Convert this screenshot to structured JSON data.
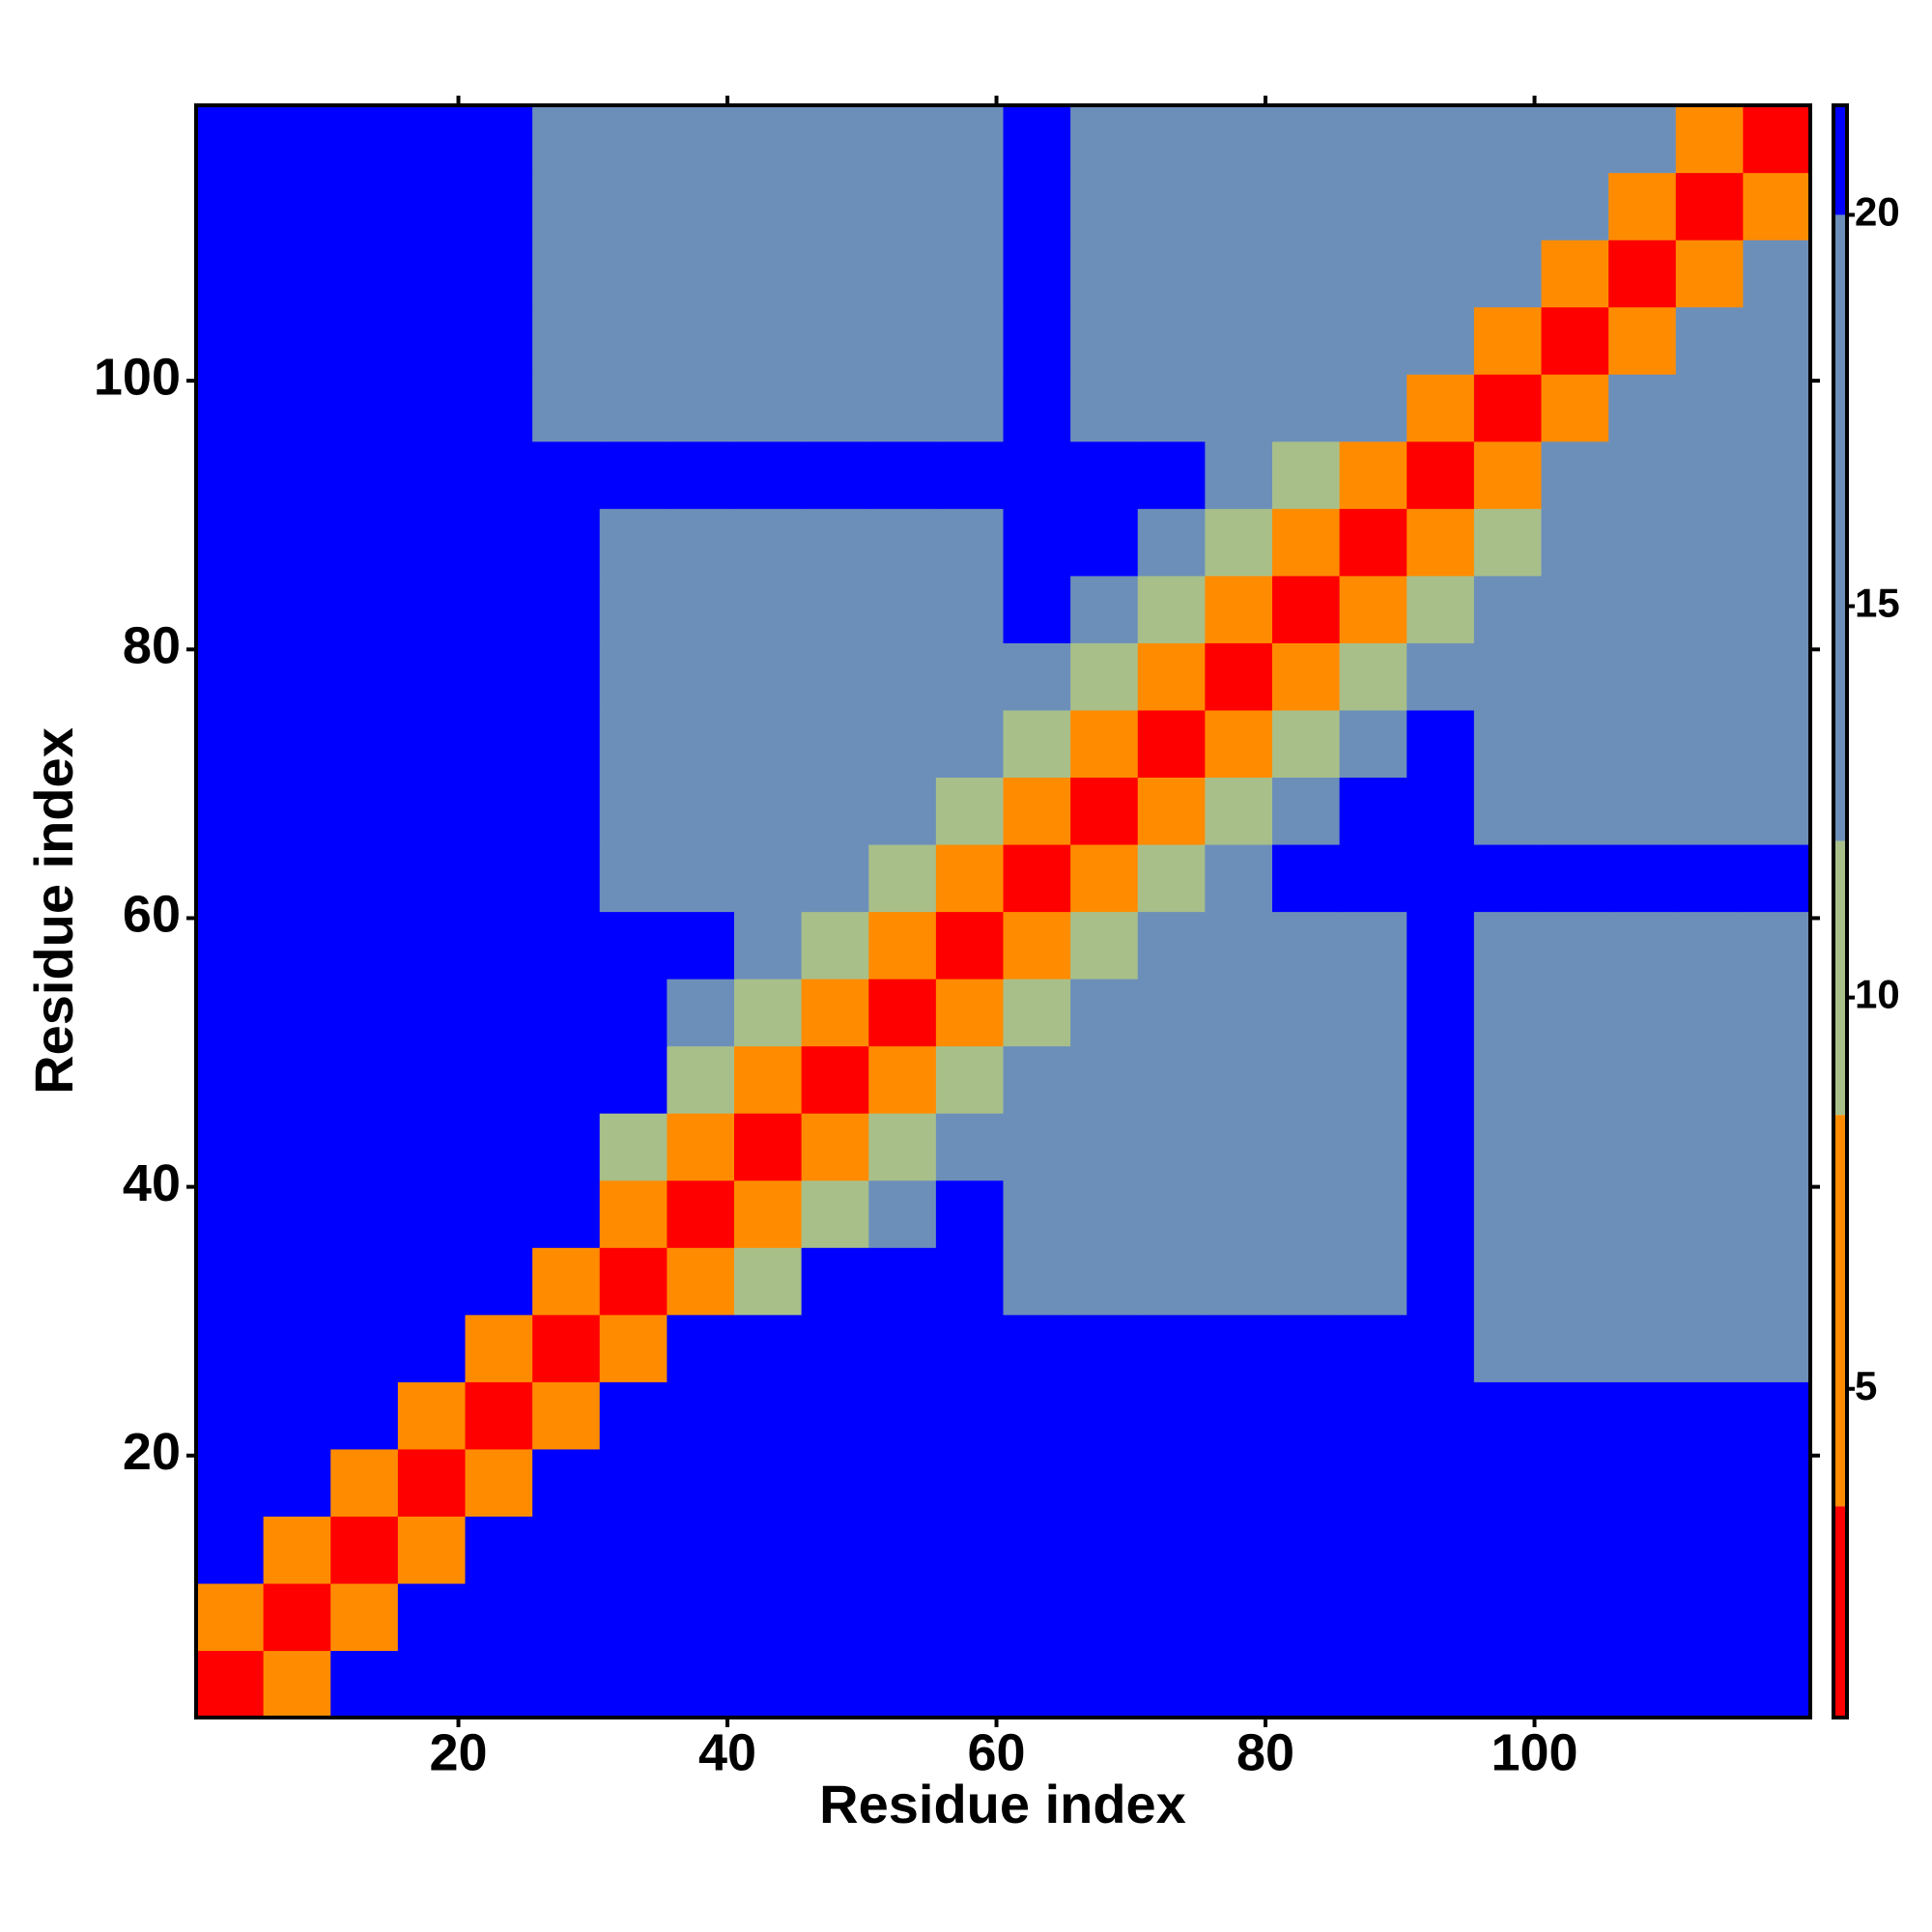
{
  "chart_data": {
    "type": "heatmap",
    "x_label": "Residue index",
    "y_label": "Residue index",
    "xbins": [
      0.5,
      5.5,
      10.5,
      15.5,
      20.5,
      25.5,
      30.5,
      35.5,
      40.5,
      45.5,
      50.5,
      55.5,
      60.5,
      65.5,
      70.5,
      75.5,
      80.5,
      85.5,
      90.5,
      95.5,
      100.5,
      105.5,
      110.5,
      115.5,
      120.5
    ],
    "ybins": [
      0.5,
      5.5,
      10.5,
      15.5,
      20.5,
      25.5,
      30.5,
      35.5,
      40.5,
      45.5,
      50.5,
      55.5,
      60.5,
      65.5,
      70.5,
      75.5,
      80.5,
      85.5,
      90.5,
      95.5,
      100.5,
      105.5,
      110.5,
      115.5,
      120.5
    ],
    "xlim": [
      0.5,
      120.5
    ],
    "ylim": [
      0.5,
      120.5
    ],
    "xticks": [
      20,
      40,
      60,
      80,
      100
    ],
    "yticks": [
      20,
      40,
      60,
      80,
      100
    ],
    "z": [
      [
        2,
        7,
        21,
        21,
        21,
        21,
        21,
        21,
        21,
        21,
        21,
        21,
        21,
        21,
        21,
        21,
        21,
        21,
        21,
        21,
        21,
        21,
        21,
        21
      ],
      [
        7,
        2,
        7,
        21,
        21,
        21,
        21,
        21,
        21,
        21,
        21,
        21,
        21,
        21,
        21,
        21,
        21,
        21,
        21,
        21,
        21,
        21,
        21,
        21
      ],
      [
        21,
        7,
        2,
        7,
        21,
        21,
        21,
        21,
        21,
        21,
        21,
        21,
        21,
        21,
        21,
        21,
        21,
        21,
        21,
        21,
        21,
        21,
        21,
        21
      ],
      [
        21,
        21,
        7,
        2,
        7,
        21,
        21,
        21,
        21,
        21,
        21,
        21,
        21,
        21,
        21,
        21,
        21,
        21,
        21,
        21,
        21,
        21,
        21,
        21
      ],
      [
        21,
        21,
        21,
        7,
        2,
        7,
        21,
        21,
        21,
        21,
        21,
        21,
        21,
        21,
        21,
        21,
        21,
        21,
        21,
        21,
        21,
        21,
        21,
        21
      ],
      [
        21,
        21,
        21,
        21,
        7,
        2,
        7,
        21,
        21,
        21,
        21,
        21,
        21,
        21,
        21,
        21,
        21,
        21,
        21,
        17,
        17,
        17,
        17,
        17
      ],
      [
        21,
        21,
        21,
        21,
        21,
        7,
        2,
        7,
        11,
        21,
        21,
        21,
        17,
        17,
        17,
        17,
        17,
        17,
        21,
        16,
        16,
        16,
        16,
        16
      ],
      [
        21,
        21,
        21,
        21,
        21,
        21,
        7,
        2,
        7,
        11,
        16,
        21,
        13,
        13,
        13,
        13,
        13,
        17,
        21,
        13,
        13,
        13,
        13,
        13
      ],
      [
        21,
        21,
        21,
        21,
        21,
        21,
        11,
        7,
        2,
        7,
        11,
        16,
        13,
        13,
        13,
        13,
        13,
        17,
        21,
        13,
        13,
        13,
        13,
        13
      ],
      [
        21,
        21,
        21,
        21,
        21,
        21,
        21,
        11,
        7,
        2,
        7,
        11,
        13,
        13,
        13,
        13,
        13,
        17,
        21,
        13,
        13,
        13,
        13,
        13
      ],
      [
        21,
        21,
        21,
        21,
        21,
        21,
        21,
        16,
        11,
        7,
        2,
        7,
        11,
        13,
        13,
        13,
        13,
        17,
        21,
        13,
        13,
        13,
        13,
        13
      ],
      [
        21,
        21,
        21,
        21,
        21,
        21,
        21,
        21,
        16,
        11,
        7,
        2,
        7,
        11,
        13,
        13,
        13,
        17,
        21,
        16,
        16,
        16,
        16,
        16
      ],
      [
        21,
        21,
        21,
        21,
        21,
        21,
        17,
        13,
        13,
        13,
        11,
        7,
        2,
        7,
        11,
        16,
        21,
        21,
        21,
        21,
        21,
        21,
        21,
        21
      ],
      [
        21,
        21,
        21,
        21,
        21,
        21,
        17,
        13,
        13,
        13,
        13,
        11,
        7,
        2,
        7,
        11,
        16,
        21,
        21,
        17,
        17,
        17,
        17,
        17
      ],
      [
        21,
        21,
        21,
        21,
        21,
        21,
        17,
        13,
        13,
        13,
        13,
        13,
        11,
        7,
        2,
        7,
        11,
        16,
        21,
        13,
        13,
        13,
        13,
        13
      ],
      [
        21,
        21,
        21,
        21,
        21,
        21,
        17,
        13,
        13,
        13,
        13,
        13,
        16,
        11,
        7,
        2,
        7,
        11,
        16,
        13,
        13,
        13,
        13,
        13
      ],
      [
        21,
        21,
        21,
        21,
        21,
        21,
        17,
        13,
        13,
        13,
        13,
        13,
        21,
        16,
        11,
        7,
        2,
        7,
        11,
        13,
        13,
        13,
        13,
        13
      ],
      [
        21,
        21,
        21,
        21,
        21,
        21,
        17,
        17,
        17,
        17,
        17,
        17,
        21,
        21,
        16,
        11,
        7,
        2,
        7,
        11,
        13,
        13,
        13,
        13
      ],
      [
        21,
        21,
        21,
        21,
        21,
        21,
        21,
        21,
        21,
        21,
        21,
        21,
        21,
        21,
        21,
        16,
        11,
        7,
        2,
        7,
        13,
        13,
        13,
        13
      ],
      [
        21,
        21,
        21,
        21,
        21,
        17,
        16,
        13,
        13,
        13,
        13,
        16,
        21,
        17,
        13,
        13,
        13,
        13,
        7,
        2,
        7,
        13,
        13,
        13
      ],
      [
        21,
        21,
        21,
        21,
        21,
        17,
        16,
        13,
        13,
        13,
        13,
        16,
        21,
        17,
        13,
        13,
        13,
        13,
        13,
        7,
        2,
        7,
        13,
        13
      ],
      [
        21,
        21,
        21,
        21,
        21,
        17,
        16,
        13,
        13,
        13,
        13,
        16,
        21,
        17,
        13,
        13,
        13,
        13,
        13,
        13,
        7,
        2,
        7,
        13
      ],
      [
        21,
        21,
        21,
        21,
        21,
        17,
        16,
        13,
        13,
        13,
        13,
        16,
        21,
        17,
        13,
        13,
        13,
        13,
        13,
        13,
        13,
        7,
        2,
        7
      ],
      [
        21,
        21,
        21,
        21,
        21,
        17,
        16,
        13,
        13,
        13,
        13,
        16,
        21,
        17,
        13,
        13,
        13,
        13,
        13,
        13,
        13,
        13,
        7,
        2
      ]
    ],
    "colorbar": {
      "bounds": [
        0.8,
        3.5,
        8.5,
        12,
        20,
        21.4
      ],
      "colors": [
        "#ff0000",
        "#ff8c00",
        "#a8bf8a",
        "#6c8fba",
        "#0000ff"
      ],
      "ticks": [
        5,
        10,
        15,
        20
      ]
    }
  }
}
